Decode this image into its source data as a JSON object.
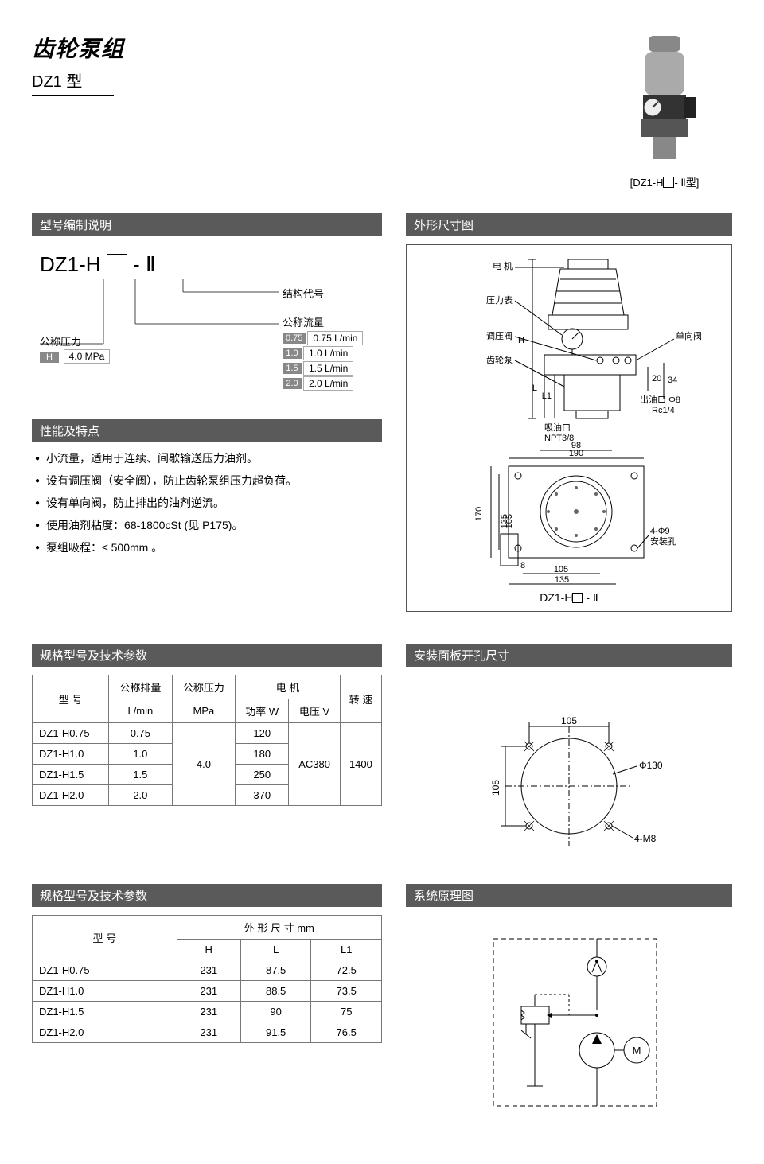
{
  "header": {
    "title_main": "齿轮泵组",
    "title_sub": "DZ1 型",
    "photo_caption_prefix": "[DZ1-H",
    "photo_caption_suffix": "- Ⅱ型]"
  },
  "model_explain": {
    "section_title": "型号编制说明",
    "code_prefix": "DZ1-H",
    "code_suffix": "- Ⅱ",
    "struct_label": "结构代号",
    "pressure_label": "公称压力",
    "pressure_badge": "H",
    "pressure_value": "4.0  MPa",
    "flow_label": "公称流量",
    "flow_rows": [
      {
        "code": "0.75",
        "val": "0.75 L/min"
      },
      {
        "code": "1.0",
        "val": "1.0  L/min"
      },
      {
        "code": "1.5",
        "val": "1.5  L/min"
      },
      {
        "code": "2.0",
        "val": "2.0  L/min"
      }
    ]
  },
  "features": {
    "section_title": "性能及特点",
    "items": [
      "小流量，适用于连续、间歇输送压力油剂。",
      "设有调压阀（安全阀），防止齿轮泵组压力超负荷。",
      "设有单向阀，防止排出的油剂逆流。",
      "使用油剂粘度：68-1800cSt (见 P175)。",
      "泵组吸程：≤ 500mm 。"
    ]
  },
  "specs1": {
    "section_title": "规格型号及技术参数",
    "col_model": "型  号",
    "col_disp": "公称排量",
    "col_disp_unit": "L/min",
    "col_press": "公称压力",
    "col_press_unit": "MPa",
    "col_motor": "电    机",
    "col_power": "功率 W",
    "col_volt": "电压 V",
    "col_speed": "转  速",
    "shared_pressure": "4.0",
    "shared_voltage": "AC380",
    "shared_speed": "1400",
    "rows": [
      {
        "model": "DZ1-H0.75",
        "disp": "0.75",
        "power": "120"
      },
      {
        "model": "DZ1-H1.0",
        "disp": "1.0",
        "power": "180"
      },
      {
        "model": "DZ1-H1.5",
        "disp": "1.5",
        "power": "250"
      },
      {
        "model": "DZ1-H2.0",
        "disp": "2.0",
        "power": "370"
      }
    ]
  },
  "specs2": {
    "section_title": "规格型号及技术参数",
    "col_model": "型  号",
    "col_outer": "外  形  尺  寸    mm",
    "col_H": "H",
    "col_L": "L",
    "col_L1": "L1",
    "rows": [
      {
        "model": "DZ1-H0.75",
        "H": "231",
        "L": "87.5",
        "L1": "72.5"
      },
      {
        "model": "DZ1-H1.0",
        "H": "231",
        "L": "88.5",
        "L1": "73.5"
      },
      {
        "model": "DZ1-H1.5",
        "H": "231",
        "L": "90",
        "L1": "75"
      },
      {
        "model": "DZ1-H2.0",
        "H": "231",
        "L": "91.5",
        "L1": "76.5"
      }
    ]
  },
  "outline_dims": {
    "section_title": "外形尺寸图",
    "labels": {
      "motor": "电  机",
      "gauge": "压力表",
      "regulator": "调压阀",
      "check_valve": "单向阀",
      "gear_pump": "齿轮泵",
      "outlet": "出油口",
      "outlet_spec": "Φ8",
      "outlet_thread": "Rc1/4",
      "inlet": "吸油口",
      "inlet_thread": "NPT3/8",
      "mount_hole": "4-Φ9",
      "mount_label": "安装孔",
      "H": "H",
      "L": "L",
      "L1": "L1"
    },
    "dims": {
      "d20": "20",
      "d34": "34",
      "d190": "190",
      "d98": "98",
      "d170": "170",
      "d135": "135",
      "d105": "105",
      "d8": "8"
    },
    "caption_prefix": "DZ1-H",
    "caption_suffix": " - Ⅱ"
  },
  "panel_hole": {
    "section_title": "安装面板开孔尺寸",
    "dims": {
      "w105": "105",
      "h105": "105",
      "dia": "Φ130",
      "bolts": "4-M8"
    }
  },
  "system_diagram": {
    "section_title": "系统原理图",
    "motor_label": "M"
  },
  "colors": {
    "hdr_bg": "#5a5a5a",
    "hdr_fg": "#ffffff",
    "badge_bg": "#888888",
    "line": "#444444",
    "table_border": "#777777"
  }
}
